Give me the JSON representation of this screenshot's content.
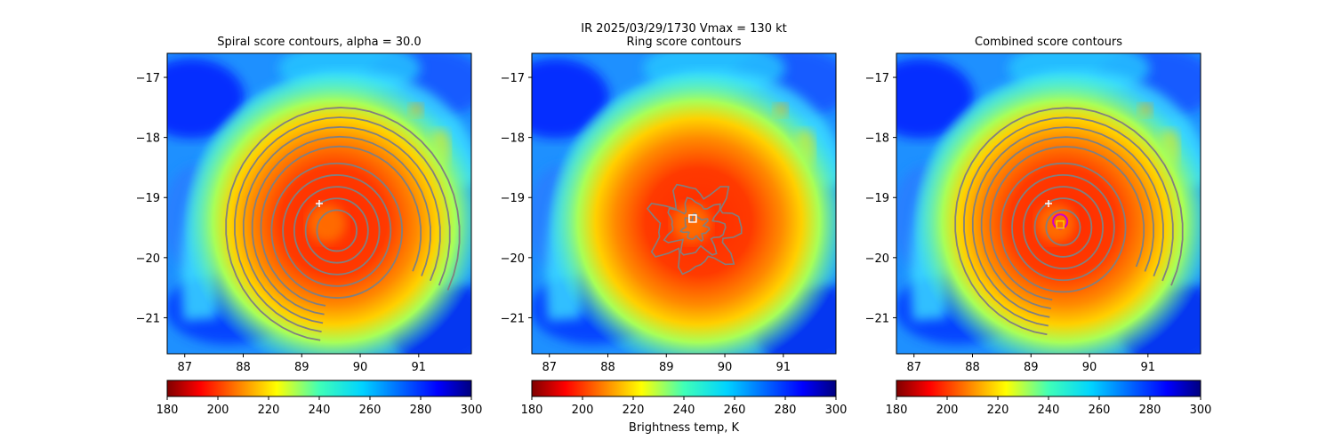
{
  "figure": {
    "title_line1": "IR  2025/03/29/1730    Vmax = 130 kt",
    "colorbar_label": "Brightness temp, K"
  },
  "chart_data": [
    {
      "type": "heatmap",
      "title": "Spiral score contours, alpha = 30.0",
      "xlim": [
        86.7,
        91.9
      ],
      "ylim": [
        -21.6,
        -16.6
      ],
      "xticks": [
        87,
        88,
        89,
        90,
        91
      ],
      "yticks": [
        -17,
        -18,
        -19,
        -20,
        -21
      ],
      "xticklabels": [
        "87",
        "88",
        "89",
        "90",
        "91"
      ],
      "yticklabels": [
        "−17",
        "−18",
        "−19",
        "−20",
        "−21"
      ],
      "storm_center": [
        89.55,
        -19.4
      ],
      "contour_center": [
        89.6,
        -19.55
      ],
      "contour_radii_deg": [
        0.35,
        0.55,
        0.75,
        0.95,
        1.15,
        1.3,
        1.45,
        1.6,
        1.75,
        1.9
      ],
      "marker_plus": [
        89.3,
        -19.1
      ],
      "marker_square": null,
      "marker_circle": null
    },
    {
      "type": "heatmap",
      "title": "Ring score contours",
      "xlim": [
        86.7,
        91.9
      ],
      "ylim": [
        -21.6,
        -16.6
      ],
      "xticks": [
        87,
        88,
        89,
        90,
        91
      ],
      "yticks": [
        -17,
        -18,
        -19,
        -20,
        -21
      ],
      "xticklabels": [
        "87",
        "88",
        "89",
        "90",
        "91"
      ],
      "yticklabels": [
        "−17",
        "−18",
        "−19",
        "−20",
        "−21"
      ],
      "storm_center": [
        89.55,
        -19.4
      ],
      "contour_center": [
        89.5,
        -19.5
      ],
      "contour_radii_deg": [
        0.2,
        0.45,
        0.7
      ],
      "marker_plus": null,
      "marker_square": [
        89.45,
        -19.35
      ],
      "marker_circle": null
    },
    {
      "type": "heatmap",
      "title": "Combined score contours",
      "xlim": [
        86.7,
        91.9
      ],
      "ylim": [
        -21.6,
        -16.6
      ],
      "xticks": [
        87,
        88,
        89,
        90,
        91
      ],
      "yticks": [
        -17,
        -18,
        -19,
        -20,
        -21
      ],
      "xticklabels": [
        "87",
        "88",
        "89",
        "90",
        "91"
      ],
      "yticklabels": [
        "−17",
        "−18",
        "−19",
        "−20",
        "−21"
      ],
      "storm_center": [
        89.55,
        -19.4
      ],
      "contour_center": [
        89.55,
        -19.5
      ],
      "contour_radii_deg": [
        0.3,
        0.5,
        0.7,
        0.9,
        1.1,
        1.25,
        1.4,
        1.55,
        1.7,
        1.85
      ],
      "marker_plus": [
        89.3,
        -19.1
      ],
      "marker_square": [
        89.5,
        -19.45
      ],
      "marker_circle": [
        89.5,
        -19.4
      ]
    }
  ],
  "colorbar": {
    "cmap": "jet_r",
    "vmin": 180,
    "vmax": 300,
    "ticks": [
      180,
      200,
      220,
      240,
      260,
      280,
      300
    ],
    "ticklabels": [
      "180",
      "200",
      "220",
      "240",
      "260",
      "280",
      "300"
    ]
  }
}
